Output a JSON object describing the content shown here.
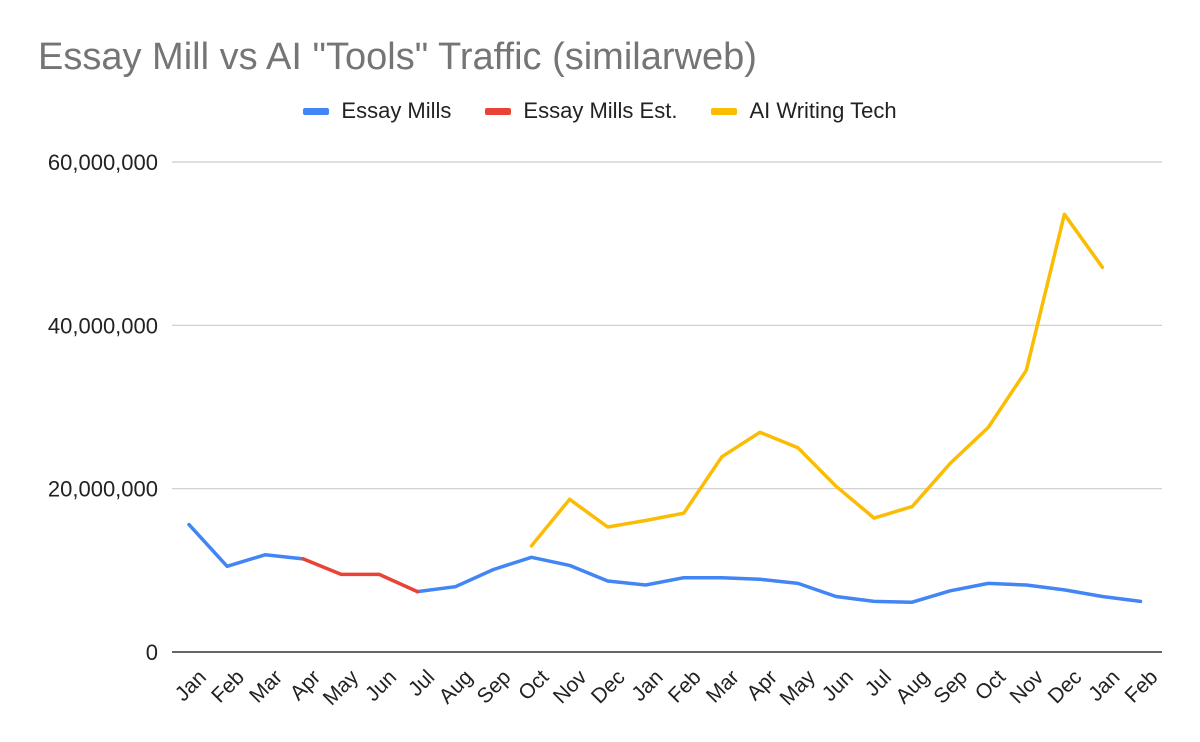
{
  "chart_data": {
    "type": "line",
    "title": "Essay Mill vs AI \"Tools\" Traffic (similarweb)",
    "xlabel": "",
    "ylabel": "",
    "categories": [
      "Jan",
      "Feb",
      "Mar",
      "Apr",
      "May",
      "Jun",
      "Jul",
      "Aug",
      "Sep",
      "Oct",
      "Nov",
      "Dec",
      "Jan",
      "Feb",
      "Mar",
      "Apr",
      "May",
      "Jun",
      "Jul",
      "Aug",
      "Sep",
      "Oct",
      "Nov",
      "Dec",
      "Jan",
      "Feb"
    ],
    "ylim": [
      0,
      60000000
    ],
    "yticks": [
      0,
      20000000,
      40000000,
      60000000
    ],
    "ytick_labels": [
      "0",
      "20,000,000",
      "40,000,000",
      "60,000,000"
    ],
    "grid": true,
    "legend_position": "top",
    "series": [
      {
        "name": "Essay Mills",
        "color": "#4285f4",
        "values": [
          15600000,
          10500000,
          11900000,
          11400000,
          null,
          null,
          7400000,
          8000000,
          10100000,
          11600000,
          10600000,
          8700000,
          8200000,
          9100000,
          9100000,
          8900000,
          8400000,
          6800000,
          6200000,
          6100000,
          7500000,
          8400000,
          8200000,
          7600000,
          6800000,
          6200000
        ]
      },
      {
        "name": "Essay Mills Est.",
        "color": "#ea4335",
        "values": [
          null,
          null,
          null,
          11400000,
          9500000,
          9500000,
          7400000,
          null,
          null,
          null,
          null,
          null,
          null,
          null,
          null,
          null,
          null,
          null,
          null,
          null,
          null,
          null,
          null,
          null,
          null,
          null
        ]
      },
      {
        "name": "AI Writing Tech",
        "color": "#fbbc04",
        "values": [
          null,
          null,
          null,
          null,
          null,
          null,
          null,
          null,
          null,
          13000000,
          18700000,
          15300000,
          16100000,
          17000000,
          23900000,
          26900000,
          25000000,
          20300000,
          16400000,
          17800000,
          23100000,
          27500000,
          34500000,
          53600000,
          47100000,
          null
        ]
      }
    ]
  }
}
